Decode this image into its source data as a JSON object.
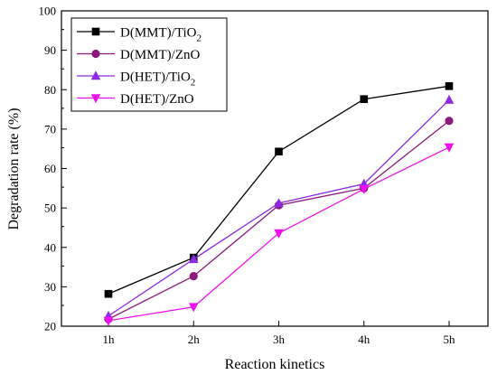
{
  "chart_data": {
    "type": "line",
    "categories": [
      "1h",
      "2h",
      "3h",
      "4h",
      "5h"
    ],
    "xlabel": "Reaction kinetics",
    "ylabel": "Degradation rate (%)",
    "ylim": [
      20,
      100
    ],
    "yticks": [
      20,
      30,
      40,
      50,
      60,
      70,
      80,
      90,
      100
    ],
    "grid": false,
    "legend_position": "top-left",
    "series": [
      {
        "name": "D(MMT)/TiO2",
        "legend_main": "D(MMT)/TiO",
        "legend_sub": "2",
        "values": [
          28.2,
          37.4,
          64.3,
          77.6,
          80.9
        ],
        "color": "#000000",
        "marker": "square"
      },
      {
        "name": "D(MMT)/ZnO",
        "legend_main": "D(MMT)/ZnO",
        "legend_sub": "",
        "values": [
          21.8,
          32.7,
          50.7,
          55.0,
          72.1
        ],
        "color": "#8b1a7a",
        "marker": "circle"
      },
      {
        "name": "D(HET)/TiO2",
        "legend_main": "D(HET)/TiO",
        "legend_sub": "2",
        "values": [
          22.6,
          37.0,
          51.2,
          56.1,
          77.4
        ],
        "color": "#8a2be2",
        "marker": "triangle-up"
      },
      {
        "name": "D(HET)/ZnO",
        "legend_main": "D(HET)/ZnO",
        "legend_sub": "",
        "values": [
          21.4,
          24.9,
          43.6,
          54.8,
          65.4
        ],
        "color": "#ee10ee",
        "marker": "triangle-down"
      }
    ]
  }
}
